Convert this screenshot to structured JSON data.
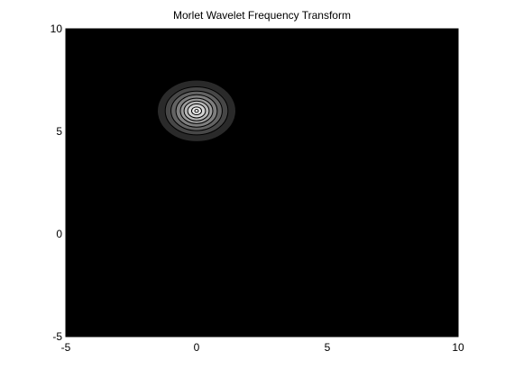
{
  "chart_data": {
    "type": "heatmap",
    "title": "Morlet Wavelet Frequency Transform",
    "xlabel": "",
    "ylabel": "",
    "xlim": [
      -5,
      10
    ],
    "ylim": [
      -5,
      10
    ],
    "xticks": [
      -5,
      0,
      5,
      10
    ],
    "yticks": [
      -5,
      0,
      5,
      10
    ],
    "xtick_labels": [
      "-5",
      "0",
      "5",
      "10"
    ],
    "ytick_labels": [
      "-5",
      "0",
      "5",
      "10"
    ],
    "grid": false,
    "background_level": 0,
    "colormap": "gray",
    "peak": {
      "x": 0,
      "y": 6
    },
    "contours": [
      {
        "level": 1,
        "x_radius": 1.5,
        "y_radius": 1.5,
        "color": "#2a2a2a"
      },
      {
        "level": 2,
        "x_radius": 1.2,
        "y_radius": 1.17,
        "color": "#474747"
      },
      {
        "level": 3,
        "x_radius": 0.98,
        "y_radius": 0.96,
        "color": "#636363"
      },
      {
        "level": 4,
        "x_radius": 0.79,
        "y_radius": 0.79,
        "color": "#7f7f7f"
      },
      {
        "level": 5,
        "x_radius": 0.62,
        "y_radius": 0.62,
        "color": "#9c9c9c"
      },
      {
        "level": 6,
        "x_radius": 0.48,
        "y_radius": 0.48,
        "color": "#b8b8b8"
      },
      {
        "level": 7,
        "x_radius": 0.34,
        "y_radius": 0.34,
        "color": "#d4d4d4"
      },
      {
        "level": 8,
        "x_radius": 0.19,
        "y_radius": 0.19,
        "color": "#f0f0f0"
      },
      {
        "level": 9,
        "x_radius": 0.07,
        "y_radius": 0.07,
        "color": "#ffffff"
      }
    ]
  }
}
